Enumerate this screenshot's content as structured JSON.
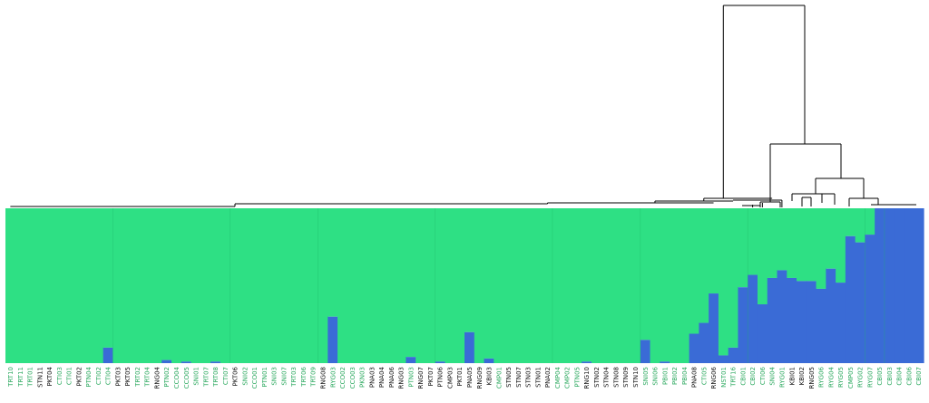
{
  "chart_data": {
    "type": "bar",
    "subtype": "stacked-admixture-with-dendrogram",
    "ylim": [
      0,
      1
    ],
    "colors": {
      "cluster1": "#2ee084",
      "cluster2": "#3a6bd6",
      "label_green": "#2aa85e",
      "label_black": "#111111",
      "dendrogram": "#000000"
    },
    "samples": [
      {
        "id": "TRT10",
        "q": 0,
        "c": "g"
      },
      {
        "id": "TRT11",
        "q": 0,
        "c": "g"
      },
      {
        "id": "TRT01",
        "q": 0,
        "c": "g"
      },
      {
        "id": "STN11",
        "q": 0,
        "c": "k"
      },
      {
        "id": "PKT04",
        "q": 0,
        "c": "k"
      },
      {
        "id": "CTI03",
        "q": 0,
        "c": "g"
      },
      {
        "id": "CTI01",
        "q": 0,
        "c": "g"
      },
      {
        "id": "PKT02",
        "q": 0,
        "c": "k"
      },
      {
        "id": "PTN04",
        "q": 0,
        "c": "g"
      },
      {
        "id": "CTI02",
        "q": 0,
        "c": "g"
      },
      {
        "id": "CTI04",
        "q": 0.1,
        "c": "g"
      },
      {
        "id": "PKT03",
        "q": 0,
        "c": "k"
      },
      {
        "id": "PKT05",
        "q": 0,
        "c": "k"
      },
      {
        "id": "TRT02",
        "q": 0,
        "c": "g"
      },
      {
        "id": "TRT04",
        "q": 0,
        "c": "g"
      },
      {
        "id": "RNG04",
        "q": 0,
        "c": "k"
      },
      {
        "id": "PTN02",
        "q": 0.02,
        "c": "g"
      },
      {
        "id": "CCO04",
        "q": 0,
        "c": "g"
      },
      {
        "id": "CCO05",
        "q": 0.01,
        "c": "g"
      },
      {
        "id": "SNI01",
        "q": 0,
        "c": "g"
      },
      {
        "id": "TRT07",
        "q": 0,
        "c": "g"
      },
      {
        "id": "TRT08",
        "q": 0.01,
        "c": "g"
      },
      {
        "id": "CTI07",
        "q": 0,
        "c": "g"
      },
      {
        "id": "PKT06",
        "q": 0,
        "c": "k"
      },
      {
        "id": "SNI02",
        "q": 0,
        "c": "g"
      },
      {
        "id": "CCO01",
        "q": 0,
        "c": "g"
      },
      {
        "id": "PTN01",
        "q": 0,
        "c": "g"
      },
      {
        "id": "SNI03",
        "q": 0,
        "c": "g"
      },
      {
        "id": "SNI07",
        "q": 0,
        "c": "g"
      },
      {
        "id": "TRT03",
        "q": 0,
        "c": "g"
      },
      {
        "id": "TRT06",
        "q": 0,
        "c": "g"
      },
      {
        "id": "TRT09",
        "q": 0,
        "c": "g"
      },
      {
        "id": "RNG08",
        "q": 0,
        "c": "k"
      },
      {
        "id": "RYG03",
        "q": 0.3,
        "c": "g"
      },
      {
        "id": "CCO02",
        "q": 0,
        "c": "g"
      },
      {
        "id": "CCO03",
        "q": 0,
        "c": "g"
      },
      {
        "id": "PKN03",
        "q": 0,
        "c": "g"
      },
      {
        "id": "PNA03",
        "q": 0,
        "c": "k"
      },
      {
        "id": "PNA04",
        "q": 0,
        "c": "k"
      },
      {
        "id": "PNA06",
        "q": 0,
        "c": "k"
      },
      {
        "id": "RNG03",
        "q": 0,
        "c": "k"
      },
      {
        "id": "PTN03",
        "q": 0.04,
        "c": "g"
      },
      {
        "id": "RNG07",
        "q": 0,
        "c": "k"
      },
      {
        "id": "PKT07",
        "q": 0,
        "c": "k"
      },
      {
        "id": "PTN06",
        "q": 0.01,
        "c": "k"
      },
      {
        "id": "CMP03",
        "q": 0,
        "c": "k"
      },
      {
        "id": "PKT01",
        "q": 0,
        "c": "k"
      },
      {
        "id": "PNA05",
        "q": 0.2,
        "c": "k"
      },
      {
        "id": "RNG09",
        "q": 0,
        "c": "k"
      },
      {
        "id": "KBI03",
        "q": 0.03,
        "c": "k"
      },
      {
        "id": "CMP01",
        "q": 0,
        "c": "g"
      },
      {
        "id": "STN05",
        "q": 0,
        "c": "k"
      },
      {
        "id": "STN07",
        "q": 0,
        "c": "k"
      },
      {
        "id": "STN03",
        "q": 0,
        "c": "k"
      },
      {
        "id": "STN01",
        "q": 0,
        "c": "k"
      },
      {
        "id": "PNA02",
        "q": 0,
        "c": "k"
      },
      {
        "id": "CMP04",
        "q": 0,
        "c": "g"
      },
      {
        "id": "CMP02",
        "q": 0,
        "c": "g"
      },
      {
        "id": "PTN05",
        "q": 0,
        "c": "g"
      },
      {
        "id": "RNG10",
        "q": 0.01,
        "c": "k"
      },
      {
        "id": "STN02",
        "q": 0,
        "c": "k"
      },
      {
        "id": "STN04",
        "q": 0,
        "c": "k"
      },
      {
        "id": "STN08",
        "q": 0,
        "c": "k"
      },
      {
        "id": "STN09",
        "q": 0,
        "c": "k"
      },
      {
        "id": "STN10",
        "q": 0,
        "c": "k"
      },
      {
        "id": "SNI05",
        "q": 0.15,
        "c": "g"
      },
      {
        "id": "SNI06",
        "q": 0,
        "c": "g"
      },
      {
        "id": "PBI01",
        "q": 0.01,
        "c": "g"
      },
      {
        "id": "PBI02",
        "q": 0,
        "c": "g"
      },
      {
        "id": "PBI04",
        "q": 0,
        "c": "g"
      },
      {
        "id": "PNA08",
        "q": 0.19,
        "c": "k"
      },
      {
        "id": "CTI05",
        "q": 0.26,
        "c": "g"
      },
      {
        "id": "RNG06",
        "q": 0.45,
        "c": "k"
      },
      {
        "id": "NST01",
        "q": 0.05,
        "c": "g"
      },
      {
        "id": "TRT16",
        "q": 0.1,
        "c": "g"
      },
      {
        "id": "CBI01",
        "q": 0.49,
        "c": "g"
      },
      {
        "id": "CBI02",
        "q": 0.57,
        "c": "g"
      },
      {
        "id": "CTI06",
        "q": 0.38,
        "c": "g"
      },
      {
        "id": "SNI04",
        "q": 0.55,
        "c": "g"
      },
      {
        "id": "RYG01",
        "q": 0.6,
        "c": "g"
      },
      {
        "id": "KBI01",
        "q": 0.55,
        "c": "k"
      },
      {
        "id": "KBI02",
        "q": 0.53,
        "c": "k"
      },
      {
        "id": "RNG05",
        "q": 0.53,
        "c": "k"
      },
      {
        "id": "RYG06",
        "q": 0.48,
        "c": "g"
      },
      {
        "id": "RYG04",
        "q": 0.61,
        "c": "g"
      },
      {
        "id": "RYG05",
        "q": 0.52,
        "c": "g"
      },
      {
        "id": "CMP05",
        "q": 0.82,
        "c": "g"
      },
      {
        "id": "RYG02",
        "q": 0.78,
        "c": "g"
      },
      {
        "id": "RYG07",
        "q": 0.83,
        "c": "g"
      },
      {
        "id": "CBI05",
        "q": 1,
        "c": "g"
      },
      {
        "id": "CBI03",
        "q": 1,
        "c": "g"
      },
      {
        "id": "CBI04",
        "q": 1,
        "c": "g"
      },
      {
        "id": "CBI06",
        "q": 1,
        "c": "g"
      },
      {
        "id": "CBI07",
        "q": 1,
        "c": "g"
      }
    ]
  }
}
